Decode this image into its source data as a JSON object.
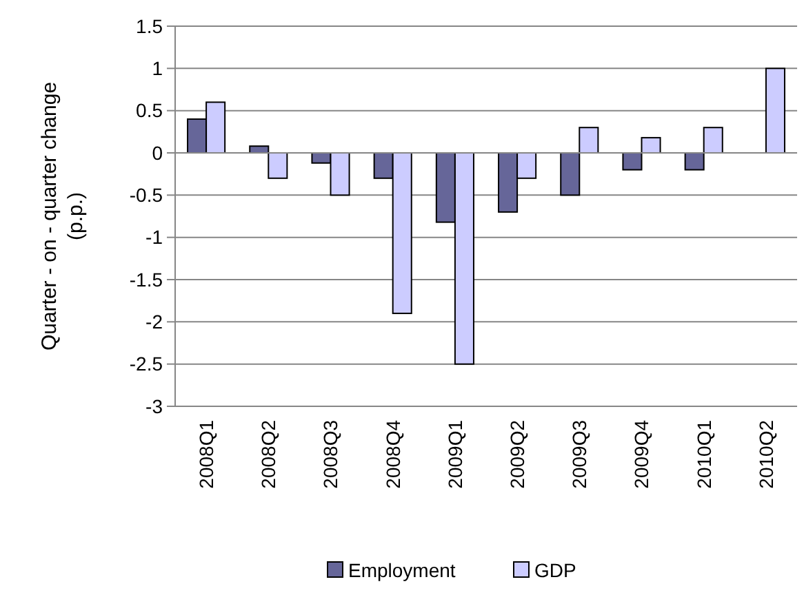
{
  "chart_data": {
    "type": "bar",
    "ylabel": "Quarter - on - quarter change (p.p.)",
    "categories": [
      "2008Q1",
      "2008Q2",
      "2008Q3",
      "2008Q4",
      "2009Q1",
      "2009Q2",
      "2009Q3",
      "2009Q4",
      "2010Q1",
      "2010Q2"
    ],
    "series": [
      {
        "name": "Employment",
        "color": "#666699",
        "values": [
          0.4,
          0.08,
          -0.12,
          -0.3,
          -0.82,
          -0.7,
          -0.5,
          -0.2,
          -0.2,
          null
        ]
      },
      {
        "name": "GDP",
        "color": "#ccccff",
        "values": [
          0.6,
          -0.3,
          -0.5,
          -1.9,
          -2.5,
          -0.3,
          0.3,
          0.18,
          0.3,
          1.0
        ]
      }
    ],
    "ylim": [
      -3,
      1.5
    ],
    "yticks": [
      -3,
      -2.5,
      -2,
      -1.5,
      -1,
      -0.5,
      0,
      0.5,
      1,
      1.5
    ],
    "grid": "y",
    "legend": "bottom"
  }
}
